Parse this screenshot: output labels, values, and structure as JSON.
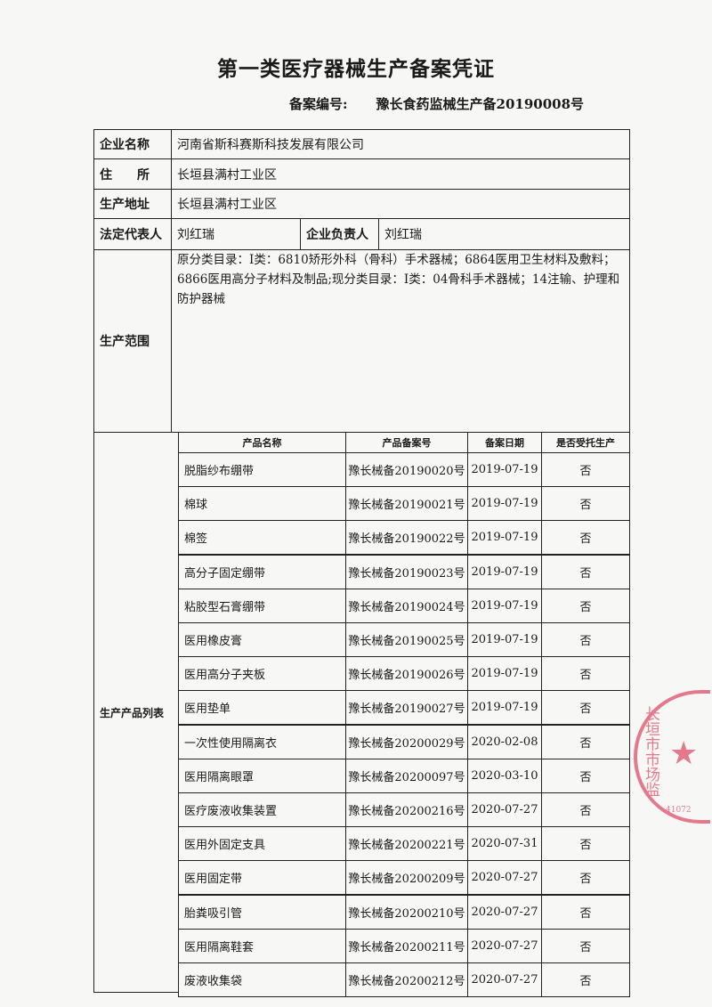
{
  "title": "第一类医疗器械生产备案凭证",
  "registration": {
    "label": "备案编号:",
    "value": "豫长食药监械生产备20190008号"
  },
  "fields": {
    "company_label": "企业名称",
    "company": "河南省斯科赛斯科技发展有限公司",
    "address_label": "住　　所",
    "address": "长垣县满村工业区",
    "site_label": "生产地址",
    "site": "长垣县满村工业区",
    "legal_rep_label": "法定代表人",
    "legal_rep": "刘红瑞",
    "manager_label": "企业负责人",
    "manager": "刘红瑞",
    "scope_label": "生产范围",
    "scope": "原分类目录：Ⅰ类：6810矫形外科（骨科）手术器械；6864医用卫生材料及敷料；6866医用高分子材料及制品;现分类目录：Ⅰ类：04骨科手术器械；14注输、护理和防护器械"
  },
  "products": {
    "label": "生产产品列表",
    "headers": [
      "产品名称",
      "产品备案号",
      "备案日期",
      "是否受托生产"
    ],
    "rows": [
      [
        "脱脂纱布绷带",
        "豫长械备20190020号",
        "2019-07-19",
        "否"
      ],
      [
        "棉球",
        "豫长械备20190021号",
        "2019-07-19",
        "否"
      ],
      [
        "棉签",
        "豫长械备20190022号",
        "2019-07-19",
        "否"
      ],
      [
        "高分子固定绷带",
        "豫长械备20190023号",
        "2019-07-19",
        "否"
      ],
      [
        "粘胶型石膏绷带",
        "豫长械备20190024号",
        "2019-07-19",
        "否"
      ],
      [
        "医用橡皮膏",
        "豫长械备20190025号",
        "2019-07-19",
        "否"
      ],
      [
        "医用高分子夹板",
        "豫长械备20190026号",
        "2019-07-19",
        "否"
      ],
      [
        "医用垫单",
        "豫长械备20190027号",
        "2019-07-19",
        "否"
      ],
      [
        "一次性使用隔离衣",
        "豫长械备20200029号",
        "2020-02-08",
        "否"
      ],
      [
        "医用隔离眼罩",
        "豫长械备20200097号",
        "2020-03-10",
        "否"
      ],
      [
        "医疗废液收集装置",
        "豫长械备20200216号",
        "2020-07-27",
        "否"
      ],
      [
        "医用外固定支具",
        "豫长械备20200221号",
        "2020-07-31",
        "否"
      ],
      [
        "医用固定带",
        "豫长械备20200209号",
        "2020-07-27",
        "否"
      ],
      [
        "胎粪吸引管",
        "豫长械备20200210号",
        "2020-07-27",
        "否"
      ],
      [
        "医用隔离鞋套",
        "豫长械备20200211号",
        "2020-07-27",
        "否"
      ],
      [
        "废液收集袋",
        "豫长械备20200212号",
        "2020-07-27",
        "否"
      ]
    ]
  },
  "seal": {
    "text": "长垣市市场监",
    "code": "41072",
    "color": "#e0506a"
  }
}
